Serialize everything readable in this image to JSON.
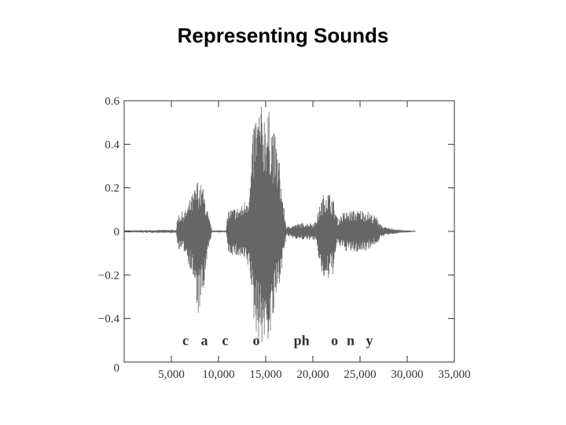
{
  "slide": {
    "title": "Representing Sounds"
  },
  "chart_data": {
    "type": "line",
    "title": "",
    "xlabel": "",
    "ylabel": "",
    "xlim": [
      0,
      35000
    ],
    "ylim": [
      -0.6,
      0.6
    ],
    "grid": false,
    "x_ticks": [
      {
        "value": 5000,
        "label": "5,000"
      },
      {
        "value": 10000,
        "label": "10,000"
      },
      {
        "value": 15000,
        "label": "15,000"
      },
      {
        "value": 20000,
        "label": "20,000"
      },
      {
        "value": 25000,
        "label": "25,000"
      },
      {
        "value": 30000,
        "label": "30,000"
      },
      {
        "value": 35000,
        "label": "35,000"
      }
    ],
    "y_ticks": [
      {
        "value": 0.6,
        "label": "0.6"
      },
      {
        "value": 0.4,
        "label": "0.4"
      },
      {
        "value": 0.2,
        "label": "0.2"
      },
      {
        "value": 0,
        "label": "0"
      },
      {
        "value": -0.2,
        "label": "−0.2"
      },
      {
        "value": -0.4,
        "label": "−0.4"
      }
    ],
    "origin_label": "0",
    "waveform_color": "#666666",
    "envelope": [
      {
        "x": 0,
        "upper": 0.005,
        "lower": -0.005
      },
      {
        "x": 5500,
        "upper": 0.008,
        "lower": -0.008
      },
      {
        "x": 5700,
        "upper": 0.08,
        "lower": -0.08
      },
      {
        "x": 6500,
        "upper": 0.1,
        "lower": -0.1
      },
      {
        "x": 7300,
        "upper": 0.18,
        "lower": -0.22
      },
      {
        "x": 7800,
        "upper": 0.24,
        "lower": -0.4
      },
      {
        "x": 8400,
        "upper": 0.2,
        "lower": -0.3
      },
      {
        "x": 8900,
        "upper": 0.08,
        "lower": -0.1
      },
      {
        "x": 9300,
        "upper": 0.005,
        "lower": -0.005
      },
      {
        "x": 10800,
        "upper": 0.005,
        "lower": -0.005
      },
      {
        "x": 11000,
        "upper": 0.1,
        "lower": -0.1
      },
      {
        "x": 12500,
        "upper": 0.12,
        "lower": -0.13
      },
      {
        "x": 13300,
        "upper": 0.2,
        "lower": -0.18
      },
      {
        "x": 13800,
        "upper": 0.55,
        "lower": -0.45
      },
      {
        "x": 14500,
        "upper": 0.58,
        "lower": -0.53
      },
      {
        "x": 15500,
        "upper": 0.55,
        "lower": -0.5
      },
      {
        "x": 16400,
        "upper": 0.35,
        "lower": -0.25
      },
      {
        "x": 16900,
        "upper": 0.12,
        "lower": -0.12
      },
      {
        "x": 17200,
        "upper": 0.02,
        "lower": -0.02
      },
      {
        "x": 17800,
        "upper": 0.03,
        "lower": -0.03
      },
      {
        "x": 19000,
        "upper": 0.04,
        "lower": -0.04
      },
      {
        "x": 20000,
        "upper": 0.04,
        "lower": -0.04
      },
      {
        "x": 20300,
        "upper": 0.05,
        "lower": -0.05
      },
      {
        "x": 20900,
        "upper": 0.15,
        "lower": -0.2
      },
      {
        "x": 21400,
        "upper": 0.2,
        "lower": -0.25
      },
      {
        "x": 22100,
        "upper": 0.16,
        "lower": -0.2
      },
      {
        "x": 22600,
        "upper": 0.06,
        "lower": -0.06
      },
      {
        "x": 23300,
        "upper": 0.09,
        "lower": -0.09
      },
      {
        "x": 24500,
        "upper": 0.1,
        "lower": -0.1
      },
      {
        "x": 25600,
        "upper": 0.1,
        "lower": -0.09
      },
      {
        "x": 26700,
        "upper": 0.07,
        "lower": -0.06
      },
      {
        "x": 27500,
        "upper": 0.02,
        "lower": -0.02
      },
      {
        "x": 29500,
        "upper": 0.006,
        "lower": -0.006
      },
      {
        "x": 30900,
        "upper": 0.003,
        "lower": -0.003
      }
    ],
    "annotations": [
      {
        "text": "c",
        "x": 6500
      },
      {
        "text": "a",
        "x": 8500
      },
      {
        "text": "c",
        "x": 10700
      },
      {
        "text": "o",
        "x": 14000
      },
      {
        "text": "ph",
        "x": 18800
      },
      {
        "text": "o",
        "x": 22300
      },
      {
        "text": "n",
        "x": 24000
      },
      {
        "text": "y",
        "x": 26000
      }
    ],
    "annotation_y": -0.5
  }
}
